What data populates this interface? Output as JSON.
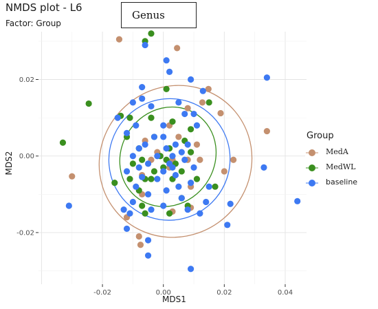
{
  "chart_data": {
    "type": "scatter",
    "title": "NMDS plot - L6",
    "subtitle": "Factor: Group",
    "badge": "Genus",
    "xlabel": "MDS1",
    "ylabel": "MDS2",
    "xlim": [
      -0.041,
      0.047
    ],
    "ylim": [
      -0.0335,
      0.0325
    ],
    "xticks": [
      "-0.02",
      "0.00",
      "0.02",
      "0.04"
    ],
    "xtick_values": [
      -0.02,
      0.0,
      0.02,
      0.04
    ],
    "yticks": [
      "0.02",
      "0.00",
      "-0.02"
    ],
    "ytick_values": [
      0.02,
      0.0,
      -0.02
    ],
    "grid": true,
    "legend": {
      "title": "Group",
      "placement": "right",
      "entries": [
        "MedA",
        "MedWL",
        "baseline"
      ]
    },
    "colors": {
      "MedA": "#c4906f",
      "MedWL": "#3a8f1f",
      "baseline": "#3d79f2"
    },
    "series": [
      {
        "name": "MedA",
        "ellipse": {
          "cx": 0.004,
          "cy": -0.0014,
          "rx": 0.0255,
          "ry": 0.0195,
          "angle": 40
        },
        "points": [
          [
            -0.0145,
            0.0305
          ],
          [
            0.0045,
            0.0282
          ],
          [
            0.0148,
            0.0175
          ],
          [
            0.0128,
            0.014
          ],
          [
            0.0188,
            0.0112
          ],
          [
            0.008,
            0.0125
          ],
          [
            0.002,
            0.008
          ],
          [
            -0.006,
            0.004
          ],
          [
            0.005,
            0.005
          ],
          [
            0.011,
            0.003
          ],
          [
            -0.002,
            0.001
          ],
          [
            0.008,
            -0.001
          ],
          [
            -0.004,
            -0.001
          ],
          [
            0.003,
            -0.001
          ],
          [
            0.012,
            -0.001
          ],
          [
            0.023,
            -0.001
          ],
          [
            0.034,
            0.0065
          ],
          [
            0.02,
            -0.004
          ],
          [
            -0.007,
            -0.005
          ],
          [
            0.009,
            -0.008
          ],
          [
            -0.007,
            -0.01
          ],
          [
            0.009,
            -0.0135
          ],
          [
            0.003,
            -0.0145
          ],
          [
            -0.012,
            -0.016
          ],
          [
            -0.008,
            -0.021
          ],
          [
            -0.0075,
            -0.0232
          ],
          [
            -0.03,
            -0.0053
          ],
          [
            0.002,
            -0.003
          ]
        ]
      },
      {
        "name": "MedWL",
        "ellipse": {
          "cx": 0.0015,
          "cy": -0.0002,
          "rx": 0.0168,
          "ry": 0.0122,
          "angle": 55
        },
        "points": [
          [
            -0.004,
            0.032
          ],
          [
            -0.006,
            0.03
          ],
          [
            -0.0245,
            0.0137
          ],
          [
            0.001,
            0.0175
          ],
          [
            0.015,
            0.014
          ],
          [
            -0.014,
            0.0105
          ],
          [
            -0.011,
            0.01
          ],
          [
            -0.004,
            0.01
          ],
          [
            0.003,
            0.009
          ],
          [
            0.009,
            0.007
          ],
          [
            -0.012,
            0.005
          ],
          [
            -0.003,
            0.005
          ],
          [
            0.007,
            0.004
          ],
          [
            -0.008,
            0.002
          ],
          [
            0.002,
            0.002
          ],
          [
            0.009,
            0.001
          ],
          [
            -0.001,
            0.0
          ],
          [
            0.001,
            -0.001
          ],
          [
            -0.007,
            -0.001
          ],
          [
            -0.01,
            -0.002
          ],
          [
            0.004,
            -0.002
          ],
          [
            -0.003,
            -0.004
          ],
          [
            0.006,
            -0.004
          ],
          [
            -0.004,
            -0.006
          ],
          [
            -0.006,
            -0.006
          ],
          [
            0.011,
            -0.006
          ],
          [
            -0.011,
            -0.006
          ],
          [
            -0.016,
            -0.007
          ],
          [
            0.017,
            -0.008
          ],
          [
            -0.008,
            -0.009
          ],
          [
            0.006,
            -0.011
          ],
          [
            -0.007,
            -0.013
          ],
          [
            0.002,
            -0.015
          ],
          [
            -0.006,
            -0.015
          ],
          [
            0.008,
            -0.013
          ],
          [
            -0.033,
            0.0035
          ],
          [
            0.0,
            -0.003
          ],
          [
            0.003,
            -0.006
          ]
        ]
      },
      {
        "name": "baseline",
        "ellipse": {
          "cx": 0.002,
          "cy": -0.0009,
          "rx": 0.02,
          "ry": 0.0158,
          "angle": 50
        },
        "points": [
          [
            -0.006,
            0.029
          ],
          [
            0.001,
            0.025
          ],
          [
            0.002,
            0.022
          ],
          [
            0.034,
            0.0205
          ],
          [
            0.009,
            0.02
          ],
          [
            0.013,
            0.017
          ],
          [
            -0.007,
            0.018
          ],
          [
            -0.01,
            0.014
          ],
          [
            -0.007,
            0.015
          ],
          [
            -0.004,
            0.013
          ],
          [
            0.005,
            0.014
          ],
          [
            0.007,
            0.011
          ],
          [
            0.01,
            0.011
          ],
          [
            -0.015,
            0.01
          ],
          [
            -0.009,
            0.008
          ],
          [
            0.0,
            0.008
          ],
          [
            0.011,
            0.008
          ],
          [
            -0.012,
            0.006
          ],
          [
            -0.003,
            0.005
          ],
          [
            0.0,
            0.005
          ],
          [
            0.004,
            0.003
          ],
          [
            0.008,
            0.003
          ],
          [
            -0.006,
            0.003
          ],
          [
            -0.008,
            0.002
          ],
          [
            0.001,
            0.002
          ],
          [
            0.006,
            0.001
          ],
          [
            -0.002,
            0.0
          ],
          [
            0.003,
            0.0
          ],
          [
            -0.01,
            0.0
          ],
          [
            0.007,
            -0.001
          ],
          [
            -0.005,
            -0.002
          ],
          [
            0.002,
            -0.002
          ],
          [
            0.01,
            -0.003
          ],
          [
            -0.008,
            -0.003
          ],
          [
            0.0,
            -0.004
          ],
          [
            0.004,
            -0.005
          ],
          [
            -0.012,
            -0.004
          ],
          [
            0.009,
            -0.007
          ],
          [
            -0.002,
            -0.006
          ],
          [
            0.005,
            -0.008
          ],
          [
            -0.009,
            -0.008
          ],
          [
            0.015,
            -0.008
          ],
          [
            0.001,
            -0.009
          ],
          [
            -0.005,
            -0.01
          ],
          [
            0.006,
            -0.011
          ],
          [
            -0.01,
            -0.012
          ],
          [
            0.014,
            -0.012
          ],
          [
            0.0,
            -0.013
          ],
          [
            -0.004,
            -0.014
          ],
          [
            0.008,
            -0.014
          ],
          [
            -0.011,
            -0.015
          ],
          [
            0.012,
            -0.015
          ],
          [
            -0.013,
            -0.014
          ],
          [
            0.022,
            -0.0125
          ],
          [
            0.044,
            -0.0118
          ],
          [
            -0.031,
            -0.013
          ],
          [
            -0.012,
            -0.019
          ],
          [
            0.021,
            -0.018
          ],
          [
            -0.005,
            -0.022
          ],
          [
            -0.005,
            -0.026
          ],
          [
            0.009,
            -0.0295
          ],
          [
            0.033,
            -0.003
          ],
          [
            -0.007,
            -0.0055
          ],
          [
            0.003,
            -0.003
          ]
        ]
      }
    ]
  }
}
